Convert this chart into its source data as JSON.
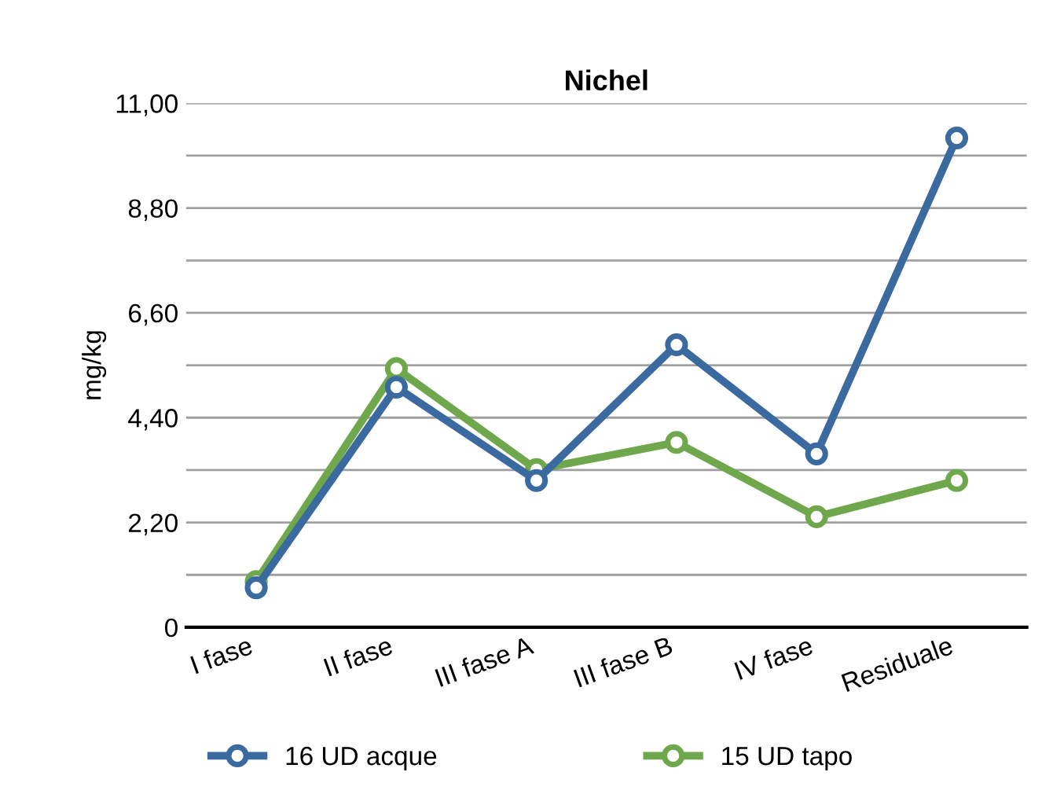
{
  "chart_data": {
    "type": "line",
    "title": "Nichel",
    "ylabel": "mg/kg",
    "categories": [
      "I fase",
      "II fase",
      "III fase A",
      "III fase B",
      "IV fase",
      "Residuale"
    ],
    "series": [
      {
        "name": "16 UD acque",
        "color": "#3b6aa0",
        "values": [
          0.83,
          5.04,
          3.08,
          5.93,
          3.64,
          10.27
        ]
      },
      {
        "name": "15 UD tapo",
        "color": "#6fa84c",
        "values": [
          0.96,
          5.43,
          3.31,
          3.88,
          2.32,
          3.08
        ]
      }
    ],
    "ylim": [
      0,
      11
    ],
    "yticks": [
      {
        "value": 0,
        "label": "0"
      },
      {
        "value": 1.1,
        "label": null
      },
      {
        "value": 2.2,
        "label": "2,20"
      },
      {
        "value": 3.3,
        "label": null
      },
      {
        "value": 4.4,
        "label": "4,40"
      },
      {
        "value": 5.5,
        "label": null
      },
      {
        "value": 6.6,
        "label": "6,60"
      },
      {
        "value": 7.7,
        "label": null
      },
      {
        "value": 8.8,
        "label": "8,80"
      },
      {
        "value": 9.9,
        "label": null
      },
      {
        "value": 11,
        "label": "11,00"
      }
    ],
    "grid": "y",
    "legend": "bottom",
    "marker": "circle",
    "line_style": "solid"
  }
}
